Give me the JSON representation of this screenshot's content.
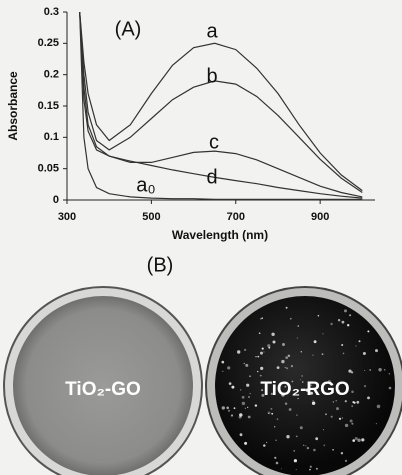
{
  "chart_data": {
    "type": "line",
    "title": "(A)",
    "x_label": "Wavelength (nm)",
    "y_label": "Absorbance",
    "x": [
      330,
      340,
      350,
      370,
      400,
      450,
      500,
      550,
      600,
      650,
      700,
      750,
      800,
      850,
      900,
      950,
      1000
    ],
    "series": [
      {
        "name": "a",
        "color": "#333333",
        "values": [
          0.3,
          0.22,
          0.17,
          0.12,
          0.095,
          0.12,
          0.17,
          0.215,
          0.243,
          0.25,
          0.24,
          0.21,
          0.17,
          0.12,
          0.075,
          0.04,
          0.015
        ]
      },
      {
        "name": "b",
        "color": "#333333",
        "values": [
          0.3,
          0.2,
          0.14,
          0.095,
          0.08,
          0.1,
          0.13,
          0.16,
          0.18,
          0.19,
          0.185,
          0.165,
          0.135,
          0.1,
          0.065,
          0.035,
          0.012
        ]
      },
      {
        "name": "c",
        "color": "#333333",
        "values": [
          0.3,
          0.18,
          0.12,
          0.085,
          0.07,
          0.06,
          0.06,
          0.068,
          0.076,
          0.078,
          0.074,
          0.064,
          0.05,
          0.036,
          0.022,
          0.012,
          0.005
        ]
      },
      {
        "name": "d",
        "color": "#333333",
        "values": [
          0.3,
          0.16,
          0.11,
          0.08,
          0.07,
          0.062,
          0.055,
          0.048,
          0.042,
          0.036,
          0.031,
          0.026,
          0.02,
          0.015,
          0.01,
          0.006,
          0.003
        ]
      },
      {
        "name": "a₀",
        "color": "#333333",
        "values": [
          0.3,
          0.1,
          0.05,
          0.02,
          0.01,
          0.005,
          0.003,
          0.002,
          0.002,
          0.001,
          0.001,
          0.001,
          0.001,
          0.001,
          0.001,
          0.001,
          0.001
        ]
      }
    ],
    "xlim": [
      300,
      1030
    ],
    "xticks": [
      300,
      500,
      700,
      900
    ],
    "ylim": [
      0,
      0.3
    ],
    "yticks": [
      0,
      0.05,
      0.1,
      0.15,
      0.2,
      0.25,
      0.3
    ]
  },
  "photo": {
    "label": "(B)",
    "samples": [
      "TiO₂-GO",
      "TiO₂-RGO"
    ]
  }
}
